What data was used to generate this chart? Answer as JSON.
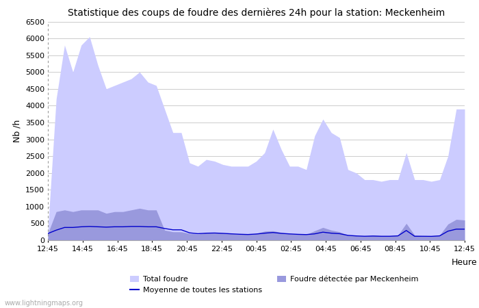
{
  "title": "Statistique des coups de foudre des dernières 24h pour la station: Meckenheim",
  "ylabel": "Nb /h",
  "xlabel": "Heure",
  "ylim": [
    0,
    6500
  ],
  "yticks": [
    0,
    500,
    1000,
    1500,
    2000,
    2500,
    3000,
    3500,
    4000,
    4500,
    5000,
    5500,
    6000,
    6500
  ],
  "x_labels": [
    "12:45",
    "14:45",
    "16:45",
    "18:45",
    "20:45",
    "22:45",
    "00:45",
    "02:45",
    "04:45",
    "06:45",
    "08:45",
    "10:45",
    "12:45"
  ],
  "color_total": "#ccccff",
  "color_meckenheim": "#9999dd",
  "color_moyenne": "#0000cc",
  "bg_color": "#ffffff",
  "grid_color": "#cccccc",
  "watermark": "www.lightningmaps.org",
  "total_foudre": [
    300,
    4200,
    5800,
    5000,
    5800,
    6050,
    5200,
    4500,
    4600,
    4700,
    4800,
    5000,
    4700,
    4600,
    3900,
    3200,
    3200,
    2300,
    2200,
    2400,
    2350,
    2250,
    2200,
    2200,
    2200,
    2350,
    2600,
    3300,
    2700,
    2200,
    2200,
    2100,
    3100,
    3600,
    3200,
    3050,
    2100,
    2000,
    1800,
    1800,
    1750,
    1800,
    1800,
    2600,
    1800,
    1800,
    1750,
    1800,
    2500,
    3900,
    3900
  ],
  "meckenheim": [
    200,
    850,
    900,
    850,
    900,
    900,
    900,
    800,
    850,
    850,
    900,
    950,
    900,
    900,
    300,
    250,
    250,
    200,
    180,
    220,
    230,
    210,
    190,
    180,
    170,
    200,
    270,
    280,
    230,
    190,
    180,
    170,
    280,
    380,
    300,
    250,
    150,
    130,
    120,
    150,
    130,
    130,
    150,
    500,
    150,
    130,
    130,
    150,
    480,
    620,
    600
  ],
  "moyenne": [
    200,
    300,
    380,
    380,
    400,
    410,
    400,
    390,
    400,
    400,
    410,
    410,
    400,
    400,
    350,
    310,
    310,
    220,
    195,
    210,
    215,
    205,
    190,
    178,
    170,
    185,
    210,
    230,
    205,
    188,
    175,
    168,
    190,
    240,
    210,
    195,
    145,
    128,
    118,
    125,
    118,
    118,
    130,
    290,
    118,
    118,
    115,
    130,
    270,
    330,
    330
  ]
}
